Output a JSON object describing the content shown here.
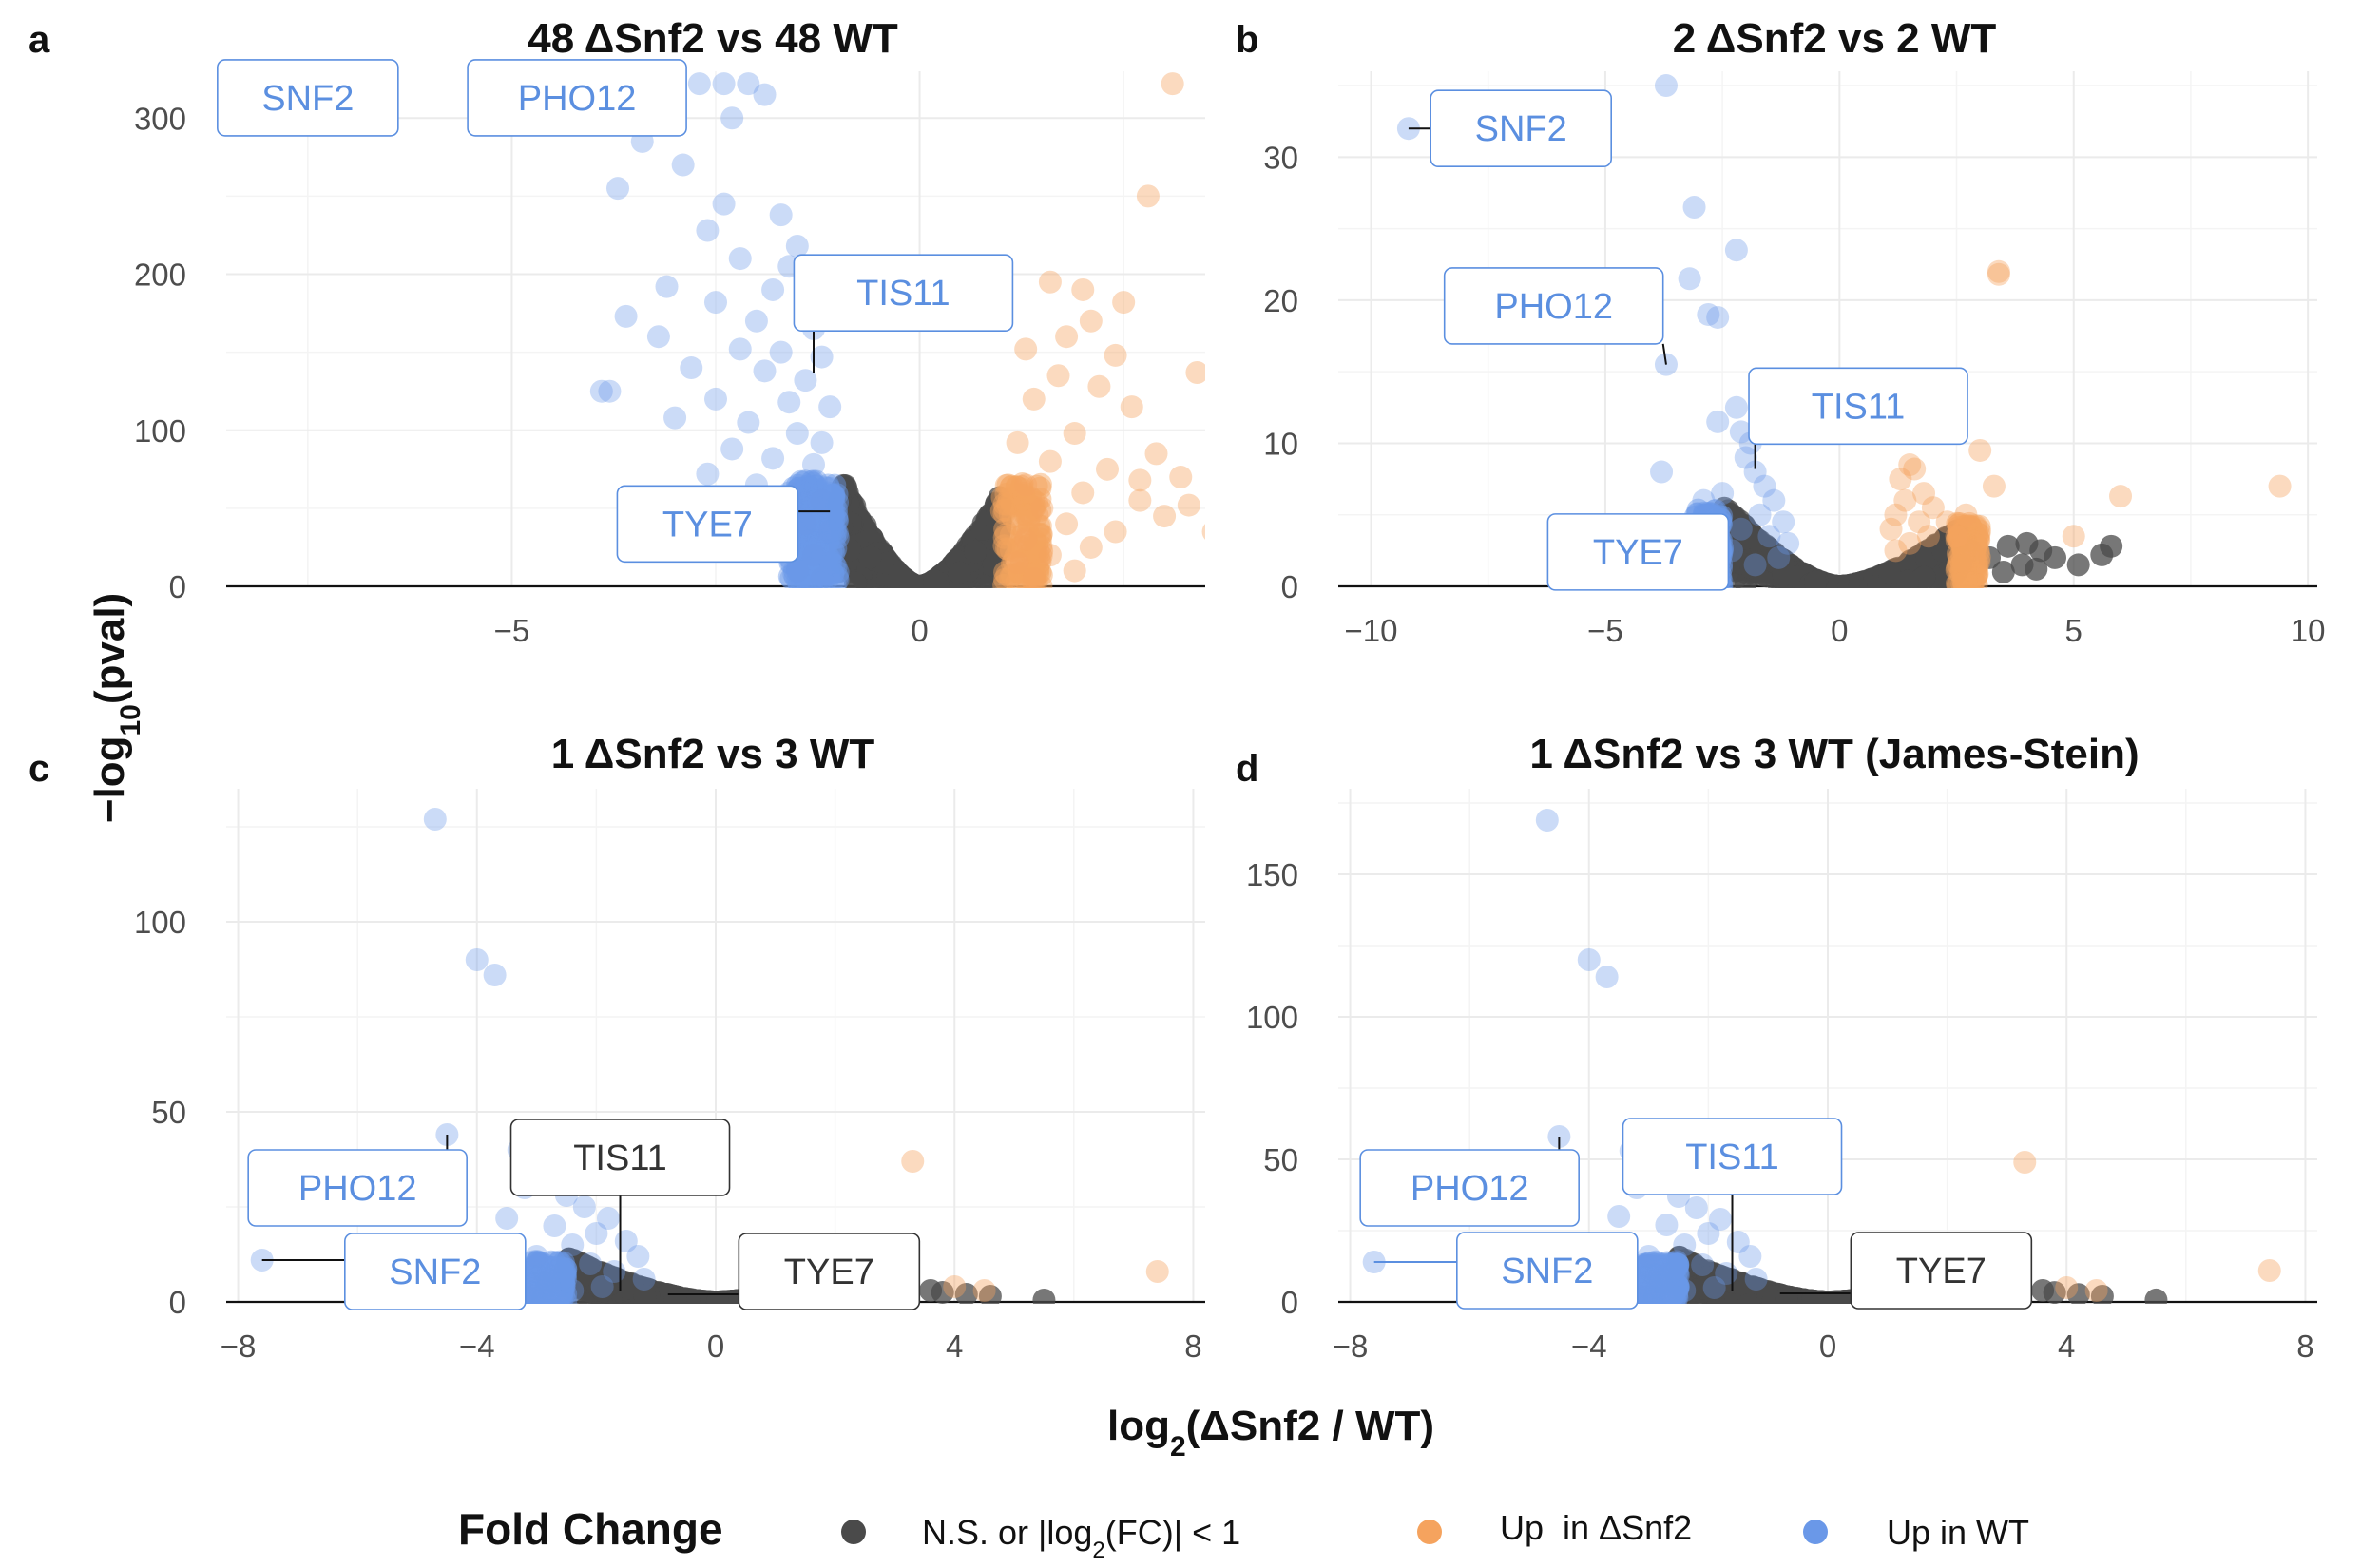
{
  "colors": {
    "ns": "#4a4a4a",
    "up_snf2": "#f5a35e",
    "up_wt": "#6a98e8",
    "label_blue": "#5b8fe0",
    "label_dark": "#333333"
  },
  "figure": {
    "xlabel": "log2(ΔSnf2 / WT)",
    "ylabel": "−log10(pval)"
  },
  "legend": {
    "title": "Fold Change",
    "items": [
      {
        "label": "N.S. or |log2(FC)| < 1",
        "color": "#4a4a4a"
      },
      {
        "label": "Up  in ΔSnf2",
        "color": "#f5a35e"
      },
      {
        "label": "Up in WT",
        "color": "#6a98e8"
      }
    ]
  },
  "chart_data": [
    {
      "type": "scatter",
      "letter": "a",
      "title": "48 ΔSnf2 vs 48 WT",
      "xlim": [
        -8.5,
        3.5
      ],
      "ylim": [
        0,
        330
      ],
      "xticks": [
        -5,
        0
      ],
      "xticklabels": [
        "−5",
        "0"
      ],
      "yticks": [
        0,
        100,
        200,
        300
      ],
      "cloud": {
        "xmin": -1.0,
        "xmax": 1.0,
        "ymax_left": 75,
        "ymax_right": 60
      },
      "up_wt_points": [
        [
          -8.1,
          322
        ],
        [
          -4.8,
          322
        ],
        [
          -4.5,
          322
        ],
        [
          -4.2,
          322
        ],
        [
          -3.9,
          322
        ],
        [
          -3.6,
          322
        ],
        [
          -3.3,
          322
        ],
        [
          -3.0,
          322
        ],
        [
          -2.7,
          322
        ],
        [
          -2.4,
          322
        ],
        [
          -2.1,
          322
        ],
        [
          -1.9,
          315
        ],
        [
          -2.3,
          300
        ],
        [
          -3.4,
          285
        ],
        [
          -2.9,
          270
        ],
        [
          -3.7,
          255
        ],
        [
          -2.4,
          245
        ],
        [
          -1.7,
          238
        ],
        [
          -2.6,
          228
        ],
        [
          -1.5,
          218
        ],
        [
          -2.2,
          210
        ],
        [
          -1.6,
          205
        ],
        [
          -3.1,
          192
        ],
        [
          -1.8,
          190
        ],
        [
          -2.5,
          182
        ],
        [
          -1.4,
          178
        ],
        [
          -3.6,
          173
        ],
        [
          -2.0,
          170
        ],
        [
          -1.3,
          165
        ],
        [
          -3.2,
          160
        ],
        [
          -2.2,
          152
        ],
        [
          -1.7,
          150
        ],
        [
          -1.2,
          147
        ],
        [
          -2.8,
          140
        ],
        [
          -1.9,
          138
        ],
        [
          -1.4,
          132
        ],
        [
          -3.9,
          125
        ],
        [
          -3.8,
          125
        ],
        [
          -2.5,
          120
        ],
        [
          -1.6,
          118
        ],
        [
          -1.1,
          115
        ],
        [
          -3.0,
          108
        ],
        [
          -2.1,
          105
        ],
        [
          -1.5,
          98
        ],
        [
          -1.2,
          92
        ],
        [
          -2.3,
          88
        ],
        [
          -1.8,
          82
        ],
        [
          -1.3,
          78
        ],
        [
          -2.6,
          72
        ],
        [
          -2.0,
          65
        ],
        [
          -1.6,
          60
        ],
        [
          -1.2,
          55
        ],
        [
          -2.4,
          50
        ],
        [
          -1.8,
          45
        ],
        [
          -1.4,
          40
        ],
        [
          -1.1,
          35
        ],
        [
          -2.1,
          30
        ],
        [
          -1.6,
          25
        ],
        [
          -1.3,
          20
        ],
        [
          -1.1,
          15
        ],
        [
          -1.5,
          10
        ],
        [
          -1.2,
          5
        ]
      ],
      "up_snf2_points": [
        [
          3.1,
          322
        ],
        [
          2.8,
          250
        ],
        [
          1.6,
          195
        ],
        [
          2.0,
          190
        ],
        [
          2.5,
          182
        ],
        [
          2.1,
          170
        ],
        [
          1.8,
          160
        ],
        [
          1.3,
          152
        ],
        [
          2.4,
          148
        ],
        [
          3.4,
          137
        ],
        [
          1.7,
          135
        ],
        [
          2.2,
          128
        ],
        [
          1.4,
          120
        ],
        [
          2.6,
          115
        ],
        [
          3.7,
          100
        ],
        [
          1.9,
          98
        ],
        [
          1.2,
          92
        ],
        [
          2.9,
          85
        ],
        [
          1.6,
          80
        ],
        [
          2.3,
          75
        ],
        [
          3.2,
          70
        ],
        [
          1.3,
          65
        ],
        [
          2.0,
          60
        ],
        [
          2.7,
          55
        ],
        [
          1.5,
          50
        ],
        [
          3.0,
          45
        ],
        [
          1.8,
          40
        ],
        [
          2.4,
          35
        ],
        [
          1.3,
          30
        ],
        [
          2.1,
          25
        ],
        [
          1.6,
          20
        ],
        [
          1.2,
          15
        ],
        [
          1.9,
          10
        ],
        [
          1.4,
          5
        ],
        [
          2.7,
          68
        ],
        [
          3.3,
          52
        ],
        [
          3.6,
          35
        ]
      ],
      "labels": [
        {
          "text": "SNF2",
          "color": "label_blue",
          "bx": -7.5,
          "by": 313,
          "px": -8.1,
          "py": 322
        },
        {
          "text": "PHO12",
          "color": "label_blue",
          "bx": -4.2,
          "by": 313,
          "px": -4.8,
          "py": 322
        },
        {
          "text": "TIS11",
          "color": "label_blue",
          "bx": -0.2,
          "by": 188,
          "px": -1.3,
          "py": 137
        },
        {
          "text": "TYE7",
          "color": "label_blue",
          "bx": -2.6,
          "by": 40,
          "px": -1.1,
          "py": 48
        }
      ]
    },
    {
      "type": "scatter",
      "letter": "b",
      "title": "2 ΔSnf2 vs 2 WT",
      "xlim": [
        -10.7,
        10.2
      ],
      "ylim": [
        0,
        36
      ],
      "xticks": [
        -10,
        -5,
        0,
        5,
        10
      ],
      "xticklabels": [
        "−10",
        "−5",
        "0",
        "5",
        "10"
      ],
      "yticks": [
        0,
        10,
        20,
        30
      ],
      "cloud": {
        "xmin": -2.5,
        "xmax": 2.5,
        "ymax_left": 6,
        "ymax_right": 4
      },
      "up_wt_points": [
        [
          -9.2,
          32
        ],
        [
          -3.7,
          35
        ],
        [
          -3.1,
          26.5
        ],
        [
          -2.2,
          23.5
        ],
        [
          -3.2,
          21.5
        ],
        [
          -2.8,
          19
        ],
        [
          -2.6,
          18.8
        ],
        [
          -3.7,
          15.5
        ],
        [
          -2.2,
          12.5
        ],
        [
          -2.6,
          11.5
        ],
        [
          -2.1,
          10.8
        ],
        [
          -1.9,
          10
        ],
        [
          -2.0,
          9
        ],
        [
          -3.8,
          8
        ],
        [
          -1.8,
          8
        ],
        [
          -1.6,
          7
        ],
        [
          -2.5,
          6.5
        ],
        [
          -1.4,
          6
        ],
        [
          -2.9,
          6
        ],
        [
          -1.7,
          5
        ],
        [
          -1.2,
          4.5
        ],
        [
          -2.1,
          4
        ],
        [
          -1.5,
          3.5
        ],
        [
          -1.1,
          3
        ],
        [
          -2.3,
          2.5
        ],
        [
          -1.3,
          2
        ],
        [
          -1.8,
          1.5
        ]
      ],
      "up_snf2_points": [
        [
          3.4,
          22
        ],
        [
          3.4,
          21.8
        ],
        [
          1.5,
          8.5
        ],
        [
          1.6,
          8.2
        ],
        [
          1.3,
          7.5
        ],
        [
          1.8,
          6.5
        ],
        [
          1.4,
          6
        ],
        [
          2.0,
          5.5
        ],
        [
          1.2,
          5
        ],
        [
          1.7,
          4.5
        ],
        [
          2.3,
          4.5
        ],
        [
          1.1,
          4
        ],
        [
          1.9,
          3.5
        ],
        [
          3.0,
          9.5
        ],
        [
          3.3,
          7
        ],
        [
          2.7,
          5
        ],
        [
          5.0,
          3.5
        ],
        [
          6.0,
          6.3
        ],
        [
          9.4,
          7
        ],
        [
          1.5,
          3
        ],
        [
          1.2,
          2.5
        ],
        [
          2.5,
          3.5
        ]
      ],
      "ns_points": [
        [
          2.8,
          2.5
        ],
        [
          3.2,
          2
        ],
        [
          3.6,
          2.8
        ],
        [
          4.0,
          3
        ],
        [
          4.3,
          2.5
        ],
        [
          4.6,
          2
        ],
        [
          5.1,
          1.5
        ],
        [
          5.8,
          2.8
        ],
        [
          5.6,
          2.2
        ],
        [
          3.9,
          1.5
        ],
        [
          3.5,
          1
        ],
        [
          4.2,
          1.2
        ],
        [
          2.6,
          1.5
        ],
        [
          -2.8,
          1.5
        ],
        [
          -3.0,
          1
        ],
        [
          -2.6,
          0.8
        ]
      ],
      "labels": [
        {
          "text": "SNF2",
          "color": "label_blue",
          "bx": -6.8,
          "by": 32,
          "px": -9.2,
          "py": 32
        },
        {
          "text": "PHO12",
          "color": "label_blue",
          "bx": -6.1,
          "by": 19.6,
          "px": -3.7,
          "py": 15.5
        },
        {
          "text": "TIS11",
          "color": "label_blue",
          "bx": 0.4,
          "by": 12.6,
          "px": -1.8,
          "py": 8.2
        },
        {
          "text": "TYE7",
          "color": "label_blue",
          "bx": -4.3,
          "by": 2.4,
          "px": -2.4,
          "py": 3.5
        }
      ]
    },
    {
      "type": "scatter",
      "letter": "c",
      "title": "1 ΔSnf2 vs 3 WT",
      "xlim": [
        -8.2,
        8.2
      ],
      "ylim": [
        0,
        135
      ],
      "xticks": [
        -8,
        -4,
        0,
        4,
        8
      ],
      "xticklabels": [
        "−8",
        "−4",
        "0",
        "4",
        "8"
      ],
      "yticks": [
        0,
        50,
        100
      ],
      "cloud": {
        "xmin": -2.5,
        "xmax": 1.8,
        "ymax_left": 12,
        "ymax_right": 5
      },
      "up_wt_points": [
        [
          -4.7,
          127
        ],
        [
          -4.0,
          90
        ],
        [
          -3.7,
          86
        ],
        [
          -4.5,
          44
        ],
        [
          -3.3,
          40
        ],
        [
          -2.8,
          35
        ],
        [
          -3.2,
          30
        ],
        [
          -2.5,
          28
        ],
        [
          -2.2,
          25
        ],
        [
          -3.5,
          22
        ],
        [
          -2.7,
          20
        ],
        [
          -2.0,
          18
        ],
        [
          -1.8,
          22
        ],
        [
          -1.5,
          16
        ],
        [
          -2.4,
          15
        ],
        [
          -3.0,
          12
        ],
        [
          -1.3,
          12
        ],
        [
          -2.1,
          10
        ],
        [
          -1.7,
          8
        ],
        [
          -1.2,
          6
        ],
        [
          -3.4,
          6
        ],
        [
          -2.8,
          5
        ],
        [
          -1.9,
          4
        ],
        [
          -7.6,
          11
        ],
        [
          -2.4,
          3
        ]
      ],
      "up_snf2_points": [
        [
          3.3,
          37
        ],
        [
          4.0,
          4
        ],
        [
          4.5,
          3
        ],
        [
          7.4,
          8
        ]
      ],
      "ns_points": [
        [
          3.6,
          3
        ],
        [
          3.8,
          2.5
        ],
        [
          4.2,
          2
        ],
        [
          4.6,
          1.5
        ],
        [
          5.5,
          0.5
        ],
        [
          -3.2,
          1.5
        ],
        [
          -2.9,
          1
        ]
      ],
      "labels": [
        {
          "text": "PHO12",
          "color": "label_blue",
          "bx": -6.0,
          "by": 30,
          "px": -4.5,
          "py": 44
        },
        {
          "text": "SNF2",
          "color": "label_blue",
          "bx": -4.7,
          "by": 8,
          "px": -7.6,
          "py": 11
        },
        {
          "text": "TIS11",
          "color": "label_dark",
          "bx": -1.6,
          "by": 38,
          "px": -1.6,
          "py": 3
        },
        {
          "text": "TYE7",
          "color": "label_dark",
          "bx": 1.9,
          "by": 8,
          "px": -0.8,
          "py": 2
        }
      ]
    },
    {
      "type": "scatter",
      "letter": "d",
      "title": "1 ΔSnf2 vs 3 WT (James-Stein)",
      "xlim": [
        -8.2,
        8.2
      ],
      "ylim": [
        0,
        180
      ],
      "xticks": [
        -8,
        -4,
        0,
        4,
        8
      ],
      "xticklabels": [
        "−8",
        "−4",
        "0",
        "4",
        "8"
      ],
      "yticks": [
        0,
        50,
        100,
        150
      ],
      "cloud": {
        "xmin": -2.5,
        "xmax": 1.8,
        "ymax_left": 16,
        "ymax_right": 6
      },
      "up_wt_points": [
        [
          -4.7,
          169
        ],
        [
          -4.0,
          120
        ],
        [
          -3.7,
          114
        ],
        [
          -4.5,
          58
        ],
        [
          -3.3,
          53
        ],
        [
          -2.8,
          47
        ],
        [
          -3.2,
          40
        ],
        [
          -2.5,
          37
        ],
        [
          -2.2,
          33
        ],
        [
          -3.5,
          30
        ],
        [
          -2.7,
          27
        ],
        [
          -2.0,
          24
        ],
        [
          -1.8,
          29
        ],
        [
          -1.5,
          21
        ],
        [
          -2.4,
          20
        ],
        [
          -3.0,
          16
        ],
        [
          -1.3,
          16
        ],
        [
          -2.1,
          13
        ],
        [
          -1.7,
          10
        ],
        [
          -1.2,
          8
        ],
        [
          -3.4,
          8
        ],
        [
          -2.8,
          7
        ],
        [
          -1.9,
          5
        ],
        [
          -7.6,
          14
        ],
        [
          -2.4,
          4
        ]
      ],
      "up_snf2_points": [
        [
          3.3,
          49
        ],
        [
          4.0,
          5
        ],
        [
          4.5,
          4
        ],
        [
          7.4,
          11
        ]
      ],
      "ns_points": [
        [
          3.6,
          4
        ],
        [
          3.8,
          3.3
        ],
        [
          4.2,
          2.6
        ],
        [
          4.6,
          2
        ],
        [
          5.5,
          0.7
        ],
        [
          -3.2,
          2
        ],
        [
          -2.9,
          1.3
        ]
      ],
      "labels": [
        {
          "text": "PHO12",
          "color": "label_blue",
          "bx": -6.0,
          "by": 40,
          "px": -4.5,
          "py": 58
        },
        {
          "text": "SNF2",
          "color": "label_blue",
          "bx": -4.7,
          "by": 11,
          "px": -7.6,
          "py": 14
        },
        {
          "text": "TIS11",
          "color": "label_blue",
          "bx": -1.6,
          "by": 51,
          "px": -1.6,
          "py": 4
        },
        {
          "text": "TYE7",
          "color": "label_dark",
          "bx": 1.9,
          "by": 11,
          "px": -0.8,
          "py": 3
        }
      ]
    }
  ]
}
